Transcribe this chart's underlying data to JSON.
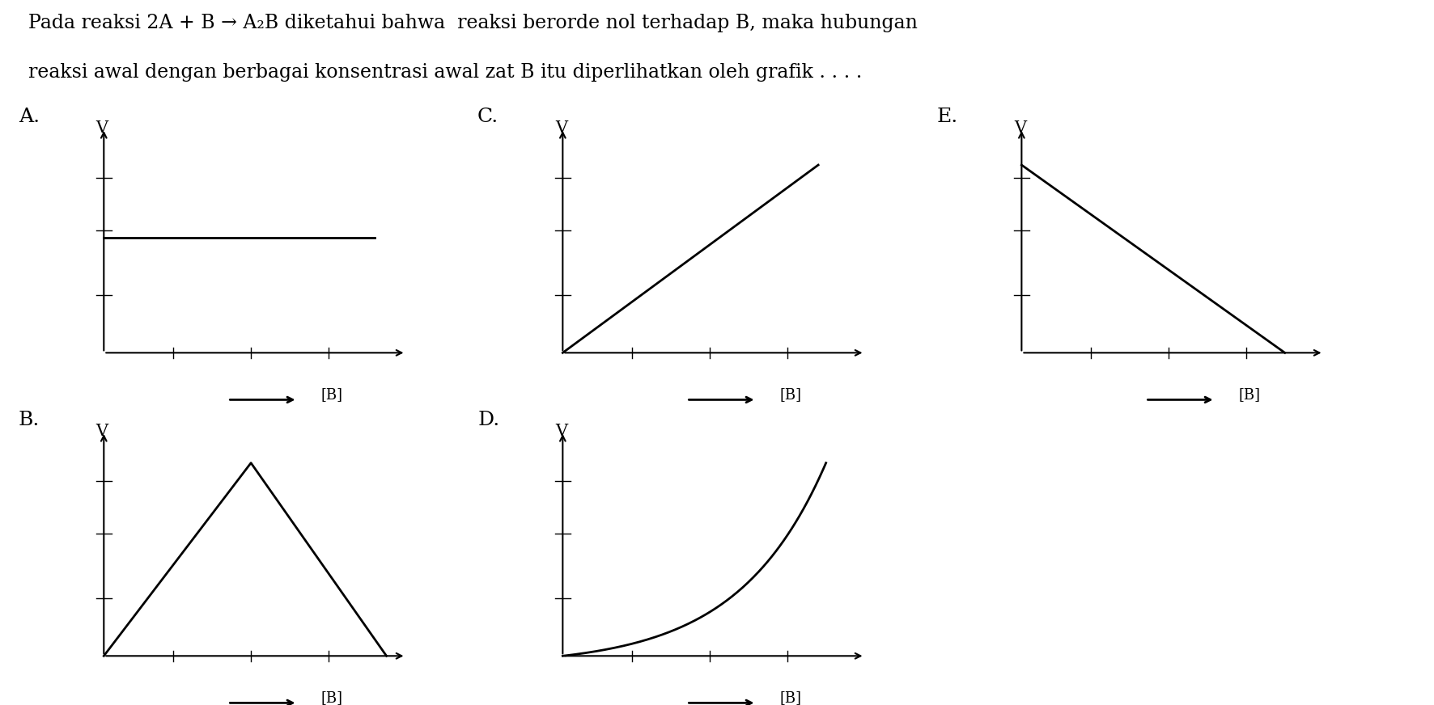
{
  "title_line1": "Pada reaksi 2A + B → A₂B diketahui bahwa  reaksi berorde nol terhadap B, maka hubungan",
  "title_line2": "reaksi awal dengan berbagai konsentrasi awal zat B itu diperlihatkan oleh grafik . . . .",
  "background_color": "#ffffff",
  "text_color": "#000000",
  "panels": [
    {
      "label": "A.",
      "col": 0,
      "row": 0,
      "type": "horizontal_line",
      "xlabel": "[B]",
      "ylabel": "V"
    },
    {
      "label": "C.",
      "col": 1,
      "row": 0,
      "type": "linear_up",
      "xlabel": "[B]",
      "ylabel": "V"
    },
    {
      "label": "E.",
      "col": 2,
      "row": 0,
      "type": "linear_down",
      "xlabel": "[B]",
      "ylabel": "V"
    },
    {
      "label": "B.",
      "col": 0,
      "row": 1,
      "type": "triangle",
      "xlabel": "[B]",
      "ylabel": "V"
    },
    {
      "label": "D.",
      "col": 1,
      "row": 1,
      "type": "exponential",
      "xlabel": "[B]",
      "ylabel": "V"
    }
  ]
}
